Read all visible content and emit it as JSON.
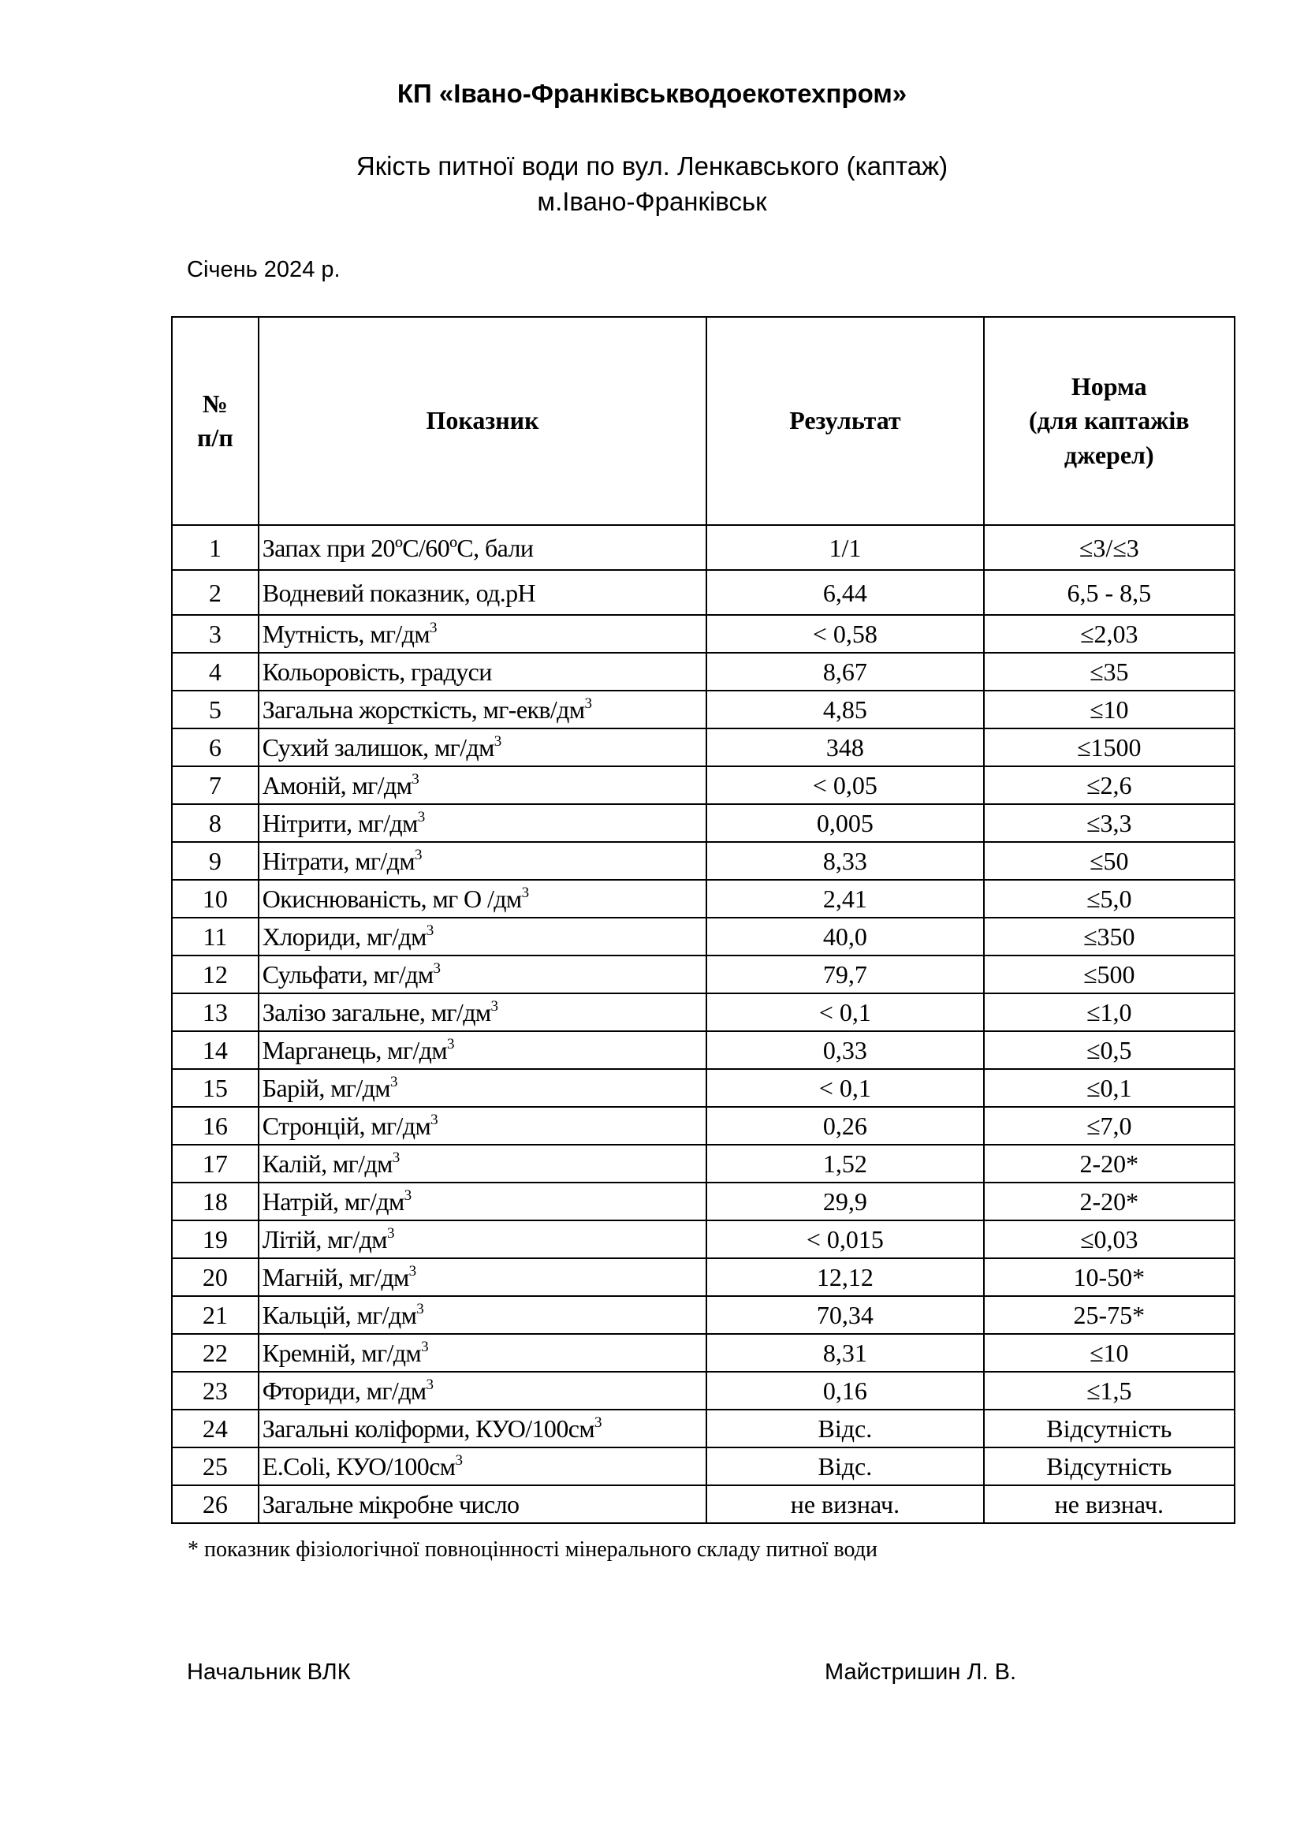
{
  "header": {
    "organization": "КП «Івано-Франківськводоекотехпром»",
    "subtitle_line1": "Якість питної води по вул. Ленкавського (каптаж)",
    "subtitle_line2": "м.Івано-Франківськ",
    "date": "Січень 2024 р."
  },
  "table": {
    "columns": {
      "num_line1": "№",
      "num_line2": "п/п",
      "indicator": "Показник",
      "result": "Результат",
      "norm_line1": "Норма",
      "norm_line2": "(для каптажів",
      "norm_line3": "джерел)"
    },
    "rows": [
      {
        "n": "1",
        "label": "Запах при 20ºС/60ºС, бали",
        "sup": "",
        "result": "1/1",
        "norm": "≤3/≤3"
      },
      {
        "n": "2",
        "label": "Водневий показник, од.pH",
        "sup": "",
        "result": "6,44",
        "norm": "6,5 - 8,5"
      },
      {
        "n": "3",
        "label": "Мутність, мг/дм",
        "sup": "3",
        "result": "< 0,58",
        "norm": "≤2,03"
      },
      {
        "n": "4",
        "label": "Кольоровість, градуси",
        "sup": "",
        "result": "8,67",
        "norm": "≤35"
      },
      {
        "n": "5",
        "label": "Загальна жорсткість, мг-екв/дм",
        "sup": "3",
        "result": "4,85",
        "norm": "≤10"
      },
      {
        "n": "6",
        "label": "Сухий залишок, мг/дм",
        "sup": "3",
        "result": "348",
        "norm": "≤1500"
      },
      {
        "n": "7",
        "label": "Амоній, мг/дм",
        "sup": "3",
        "result": "< 0,05",
        "norm": "≤2,6"
      },
      {
        "n": "8",
        "label": "Нітрити, мг/дм",
        "sup": "3",
        "result": "0,005",
        "norm": "≤3,3"
      },
      {
        "n": "9",
        "label": "Нітрати, мг/дм",
        "sup": "3",
        "result": "8,33",
        "norm": "≤50"
      },
      {
        "n": "10",
        "label": "Окиснюваність, мг О /дм",
        "sup": "3",
        "result": "2,41",
        "norm": "≤5,0"
      },
      {
        "n": "11",
        "label": "Хлориди, мг/дм",
        "sup": "3",
        "result": "40,0",
        "norm": "≤350"
      },
      {
        "n": "12",
        "label": "Сульфати, мг/дм",
        "sup": "3",
        "result": "79,7",
        "norm": "≤500"
      },
      {
        "n": "13",
        "label": "Залізо загальне, мг/дм",
        "sup": "3",
        "result": "< 0,1",
        "norm": "≤1,0"
      },
      {
        "n": "14",
        "label": "Марганець, мг/дм",
        "sup": "3",
        "result": "0,33",
        "norm": "≤0,5"
      },
      {
        "n": "15",
        "label": "Барій, мг/дм",
        "sup": "3",
        "result": "< 0,1",
        "norm": "≤0,1"
      },
      {
        "n": "16",
        "label": "Стронцій, мг/дм",
        "sup": "3",
        "result": "0,26",
        "norm": "≤7,0"
      },
      {
        "n": "17",
        "label": "Калій, мг/дм",
        "sup": "3",
        "result": "1,52",
        "norm": "2-20*"
      },
      {
        "n": "18",
        "label": "Натрій, мг/дм",
        "sup": "3",
        "result": "29,9",
        "norm": "2-20*"
      },
      {
        "n": "19",
        "label": "Літій, мг/дм",
        "sup": "3",
        "result": "< 0,015",
        "norm": "≤0,03"
      },
      {
        "n": "20",
        "label": "Магній, мг/дм",
        "sup": "3",
        "result": "12,12",
        "norm": "10-50*"
      },
      {
        "n": "21",
        "label": "Кальцій, мг/дм",
        "sup": "3",
        "result": "70,34",
        "norm": "25-75*"
      },
      {
        "n": "22",
        "label": "Кремній, мг/дм",
        "sup": "3",
        "result": "8,31",
        "norm": "≤10"
      },
      {
        "n": "23",
        "label": "Фториди, мг/дм",
        "sup": "3",
        "result": "0,16",
        "norm": "≤1,5"
      },
      {
        "n": "24",
        "label": "Загальні коліформи, КУО/100см",
        "sup": "3",
        "result": "Відс.",
        "norm": "Відсутність"
      },
      {
        "n": "25",
        "label": "E.Coli, КУО/100см",
        "sup": "3",
        "result": "Відс.",
        "norm": "Відсутність"
      },
      {
        "n": "26",
        "label": "Загальне мікробне число",
        "sup": "",
        "result": "не визнач.",
        "norm": "не визнач."
      }
    ]
  },
  "footnote": "* показник фізіологічної повноцінності мінерального складу питної води",
  "signature": {
    "position": "Начальник ВЛК",
    "name": "Майстришин  Л. В."
  }
}
